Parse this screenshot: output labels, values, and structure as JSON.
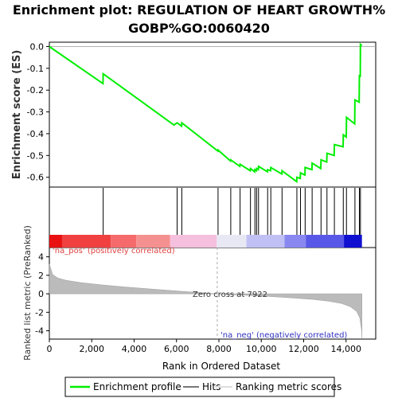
{
  "chart_data": {
    "type": "line",
    "title_line1": "Enrichment plot: REGULATION OF HEART GROWTH%",
    "title_line2": "GOBP%GO:0060420",
    "es_ylabel": "Enrichment score (ES)",
    "rank_ylabel": "Ranked list metric (PreRanked)",
    "xlabel": "Rank in Ordered Dataset",
    "xlim": [
      0,
      15400
    ],
    "es_ylim": [
      -0.645,
      0.02
    ],
    "rank_ylim": [
      -4.9,
      5.0
    ],
    "x_ticks": [
      "0",
      "2,000",
      "4,000",
      "6,000",
      "8,000",
      "10,000",
      "12,000",
      "14,000"
    ],
    "x_tick_values": [
      0,
      2000,
      4000,
      6000,
      8000,
      10000,
      12000,
      14000
    ],
    "es_ticks": [
      "0.0",
      "-0.1",
      "-0.2",
      "-0.3",
      "-0.4",
      "-0.5",
      "-0.6"
    ],
    "es_tick_values": [
      0.0,
      -0.1,
      -0.2,
      -0.3,
      -0.4,
      -0.5,
      -0.6
    ],
    "rank_ticks": [
      "4",
      "2",
      "0",
      "-2",
      "-4"
    ],
    "rank_tick_values": [
      4,
      2,
      0,
      -2,
      -4
    ],
    "pos_note": "'na_pos' (positively correlated)",
    "neg_note": "'na_neg' (negatively correlated)",
    "zero_cross_label": "Zero cross at 7922",
    "zero_cross": 7922,
    "hits": [
      2540,
      6030,
      6250,
      7960,
      8560,
      9000,
      9490,
      9700,
      9780,
      9870,
      10300,
      10450,
      10980,
      11680,
      11850,
      12070,
      12400,
      12820,
      13100,
      13450,
      13870,
      14020,
      14420,
      14630,
      14680
    ],
    "es_curve": {
      "x": [
        0,
        2530,
        2540,
        5880,
        6030,
        6240,
        6250,
        7950,
        7960,
        8550,
        8560,
        8990,
        9000,
        9480,
        9490,
        9690,
        9700,
        9770,
        9780,
        9860,
        9870,
        10290,
        10300,
        10440,
        10450,
        10970,
        10980,
        11670,
        11680,
        11840,
        11850,
        12060,
        12070,
        12390,
        12400,
        12810,
        12820,
        13090,
        13100,
        13440,
        13450,
        13860,
        13870,
        14010,
        14020,
        14410,
        14420,
        14620,
        14630,
        14670,
        14680,
        14750
      ],
      "y": [
        0.0,
        -0.17,
        -0.125,
        -0.36,
        -0.35,
        -0.365,
        -0.35,
        -0.48,
        -0.475,
        -0.525,
        -0.52,
        -0.55,
        -0.54,
        -0.57,
        -0.56,
        -0.575,
        -0.565,
        -0.57,
        -0.56,
        -0.565,
        -0.55,
        -0.575,
        -0.565,
        -0.57,
        -0.555,
        -0.585,
        -0.57,
        -0.62,
        -0.6,
        -0.605,
        -0.58,
        -0.59,
        -0.555,
        -0.565,
        -0.535,
        -0.56,
        -0.52,
        -0.53,
        -0.49,
        -0.5,
        -0.45,
        -0.46,
        -0.405,
        -0.415,
        -0.325,
        -0.355,
        -0.245,
        -0.255,
        -0.13,
        -0.14,
        0.01,
        0.005
      ]
    },
    "rank_metric": {
      "x": [
        0,
        150,
        400,
        800,
        1500,
        2500,
        3500,
        5000,
        6500,
        7922,
        9000,
        10500,
        11500,
        12500,
        13200,
        13800,
        14200,
        14500,
        14650,
        14740,
        14750
      ],
      "y": [
        3.2,
        2.1,
        1.7,
        1.45,
        1.2,
        0.95,
        0.75,
        0.48,
        0.22,
        0.0,
        -0.12,
        -0.3,
        -0.45,
        -0.62,
        -0.8,
        -1.05,
        -1.4,
        -1.9,
        -2.6,
        -4.0,
        -4.8
      ]
    },
    "colors": {
      "es_line": "#00ee00",
      "hit_line": "#000000",
      "metric_fill": "#bbbbbb",
      "zero_line": "#aaaaaa"
    },
    "heat_bands": [
      {
        "x0": 0,
        "x1": 600,
        "color": "#e81010"
      },
      {
        "x0": 600,
        "x1": 2900,
        "color": "#f04040"
      },
      {
        "x0": 2900,
        "x1": 4100,
        "color": "#f56a6a"
      },
      {
        "x0": 4100,
        "x1": 5700,
        "color": "#f59090"
      },
      {
        "x0": 5700,
        "x1": 7900,
        "color": "#f5c0dd"
      },
      {
        "x0": 7900,
        "x1": 9300,
        "color": "#e8e8f5"
      },
      {
        "x0": 9300,
        "x1": 11100,
        "color": "#c0c0f5"
      },
      {
        "x0": 11100,
        "x1": 12100,
        "color": "#8888f0"
      },
      {
        "x0": 12100,
        "x1": 13900,
        "color": "#5858e8"
      },
      {
        "x0": 13900,
        "x1": 14750,
        "color": "#1010d0"
      }
    ]
  },
  "legend": {
    "items": [
      {
        "label": "Enrichment profile",
        "color": "#00ee00"
      },
      {
        "label": "Hits",
        "color": "#777777"
      },
      {
        "label": "Ranking metric scores",
        "color": "#dddddd"
      }
    ]
  }
}
